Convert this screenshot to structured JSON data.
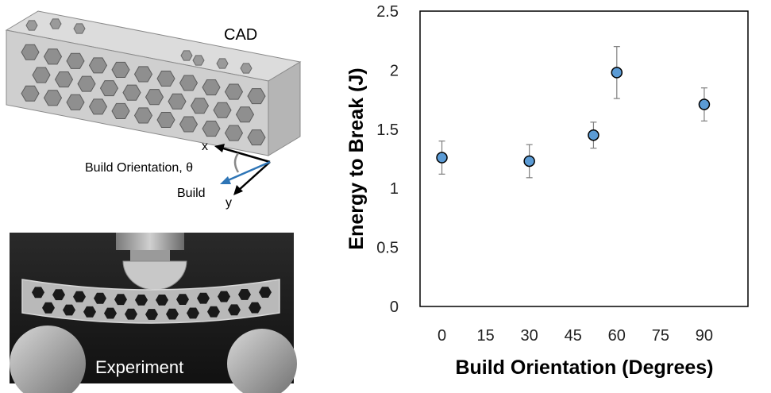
{
  "cad_panel": {
    "label": "CAD",
    "axis_x_label": "x",
    "axis_y_label": "y",
    "orientation_label": "Build Orientation, θ",
    "build_label": "Build",
    "build_arrow_color": "#2e75b6"
  },
  "experiment_panel": {
    "label": "Experiment"
  },
  "chart_data": {
    "type": "scatter",
    "title": "",
    "xlabel": "Build Orientation (Degrees)",
    "ylabel": "Energy to Break (J)",
    "xlim": [
      -7.5,
      105
    ],
    "ylim": [
      0,
      2.5
    ],
    "x_ticks": [
      "0",
      "15",
      "30",
      "45",
      "60",
      "75",
      "90"
    ],
    "x_tick_values": [
      0,
      15,
      30,
      45,
      60,
      75,
      90
    ],
    "y_ticks": [
      "0",
      "0.5",
      "1",
      "1.5",
      "2",
      "2.5"
    ],
    "y_tick_values": [
      0,
      0.5,
      1,
      1.5,
      2,
      2.5
    ],
    "grid": false,
    "marker_color": "#5b9bd5",
    "series": [
      {
        "name": "Energy to Break",
        "x": [
          0,
          30,
          52,
          60,
          90
        ],
        "y": [
          1.26,
          1.23,
          1.45,
          1.98,
          1.71
        ],
        "error": [
          0.14,
          0.14,
          0.11,
          0.22,
          0.14
        ]
      }
    ]
  }
}
